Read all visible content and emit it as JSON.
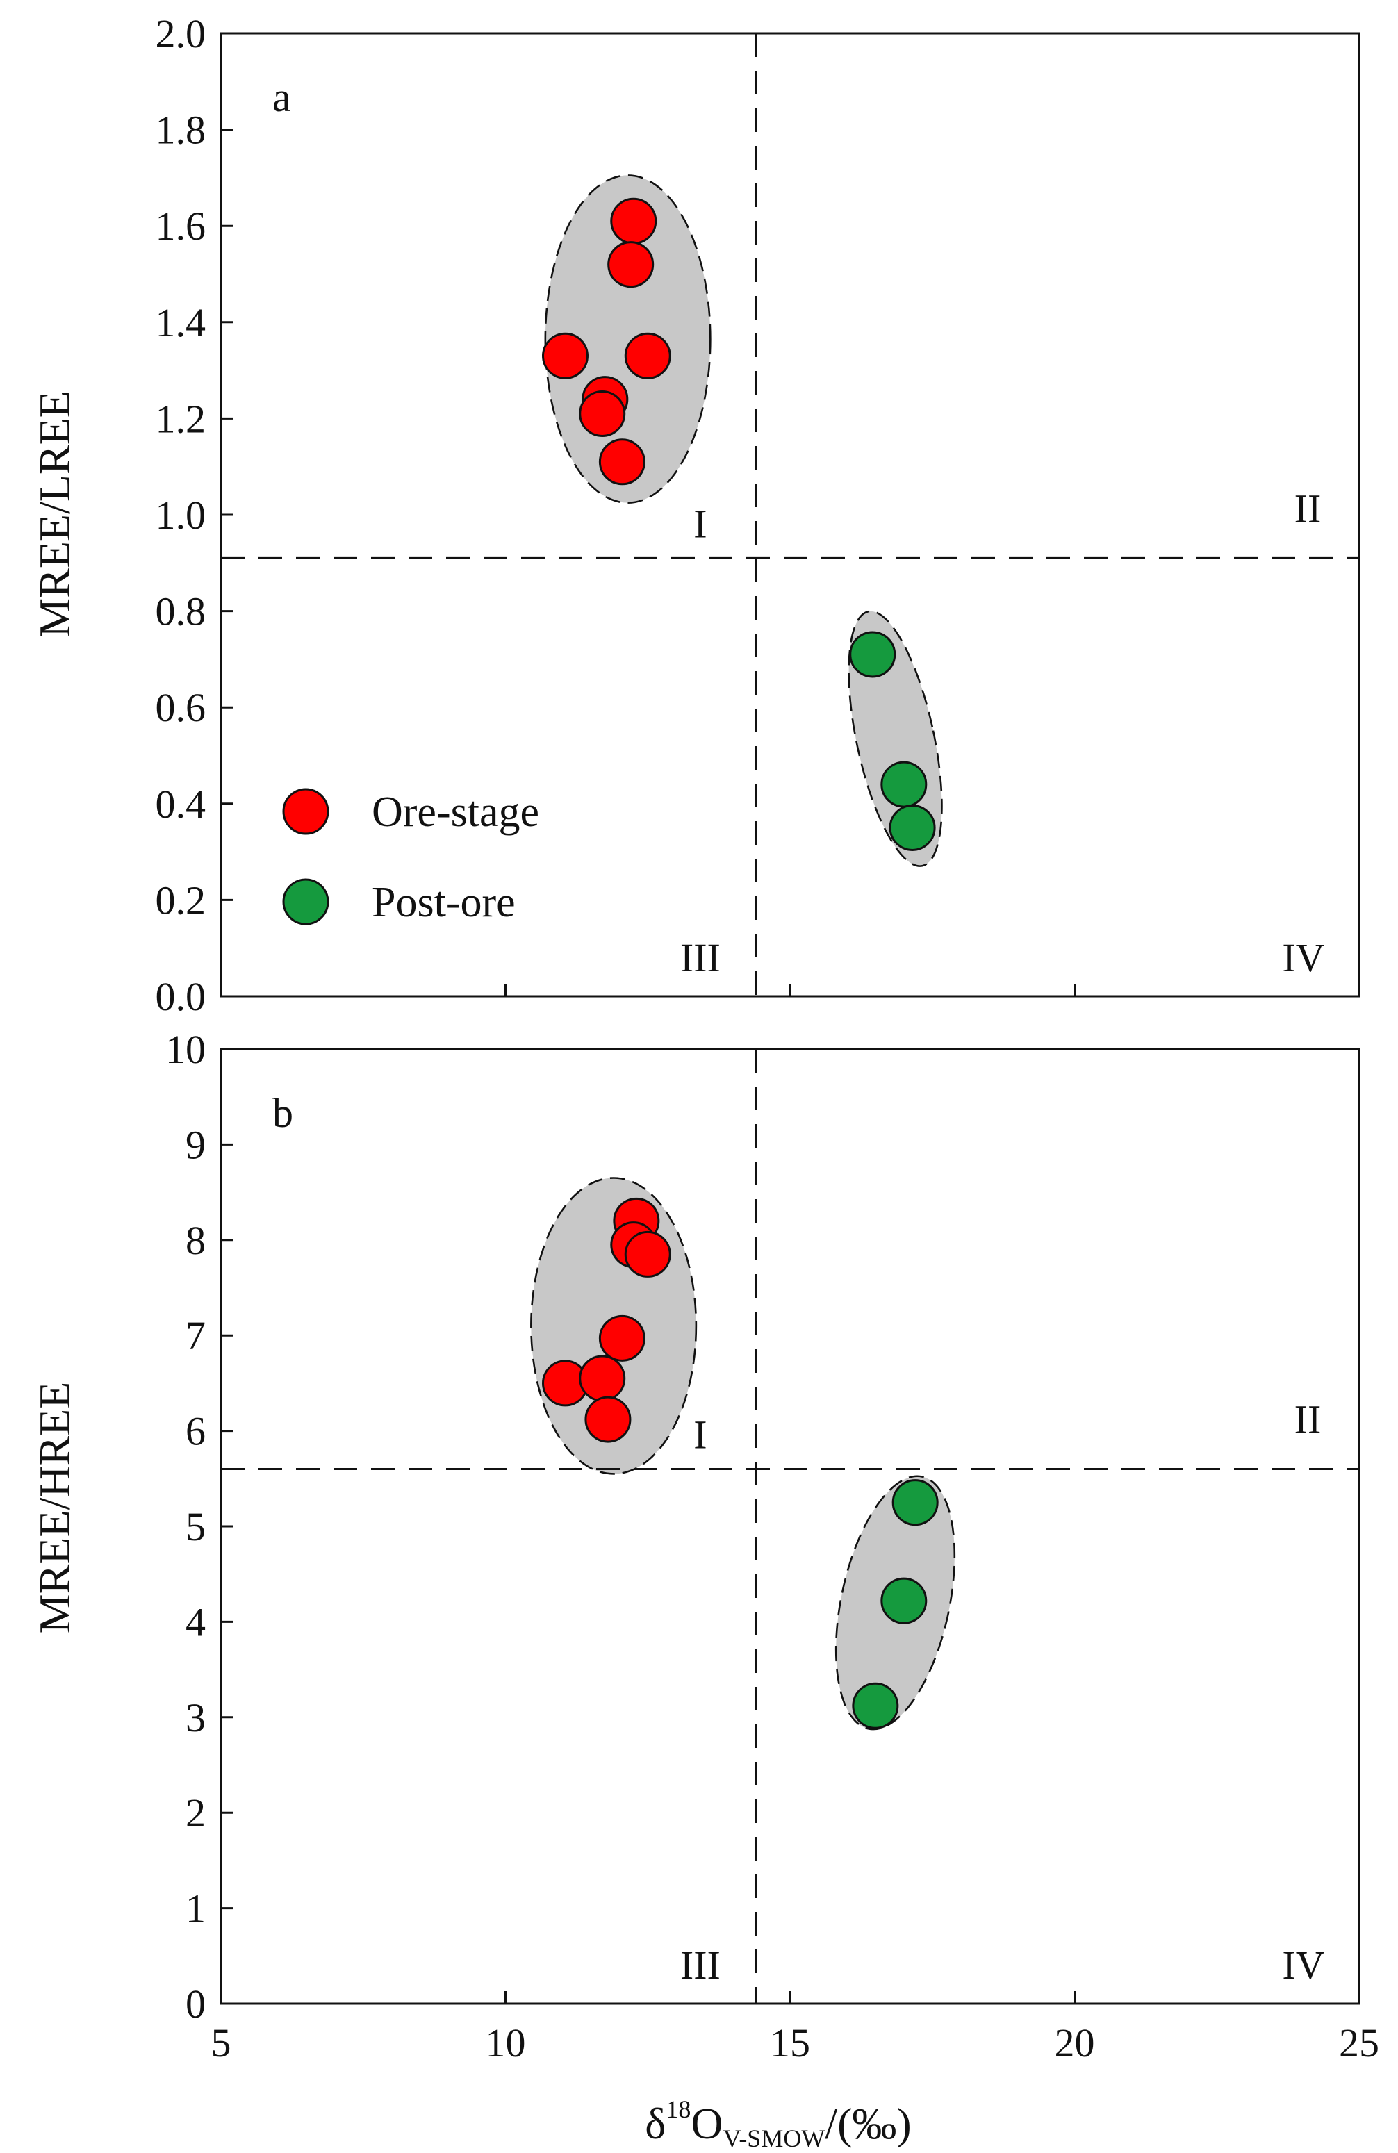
{
  "colors": {
    "ore_stage": "#ff0000",
    "post_ore": "#159a3e",
    "envelope": "#c8c8c8",
    "axis": "#111111"
  },
  "legend": [
    {
      "label": "Ore-stage",
      "color": "#ff0000"
    },
    {
      "label": "Post-ore",
      "color": "#159a3e"
    }
  ],
  "xaxis": {
    "title_main": "δ",
    "title_sup": "18",
    "title_o": "O",
    "title_sub": "V-SMOW",
    "title_unit": "/(‰)",
    "ticks": [
      "5",
      "10",
      "15",
      "20",
      "25"
    ],
    "range": [
      5,
      25
    ]
  },
  "chart_data": [
    {
      "type": "scatter",
      "panel_label": "a",
      "xlabel": "δ18O V-SMOW/(‰)",
      "ylabel": "MREE/LREE",
      "xlim": [
        5,
        25
      ],
      "ylim": [
        0,
        2.0
      ],
      "yticks": [
        "0.0",
        "0.2",
        "0.4",
        "0.6",
        "0.8",
        "1.0",
        "1.2",
        "1.4",
        "1.6",
        "1.8",
        "2.0"
      ],
      "xticks": [
        5,
        10,
        15,
        20,
        25
      ],
      "divider_x": 14.4,
      "divider_y": 0.91,
      "quadrants": {
        "I": "I",
        "II": "II",
        "III": "III",
        "IV": "IV"
      },
      "envelopes": [
        {
          "series": "Ore-stage",
          "cx": 12.15,
          "cy": 1.365,
          "rx": 1.45,
          "ry": 0.34,
          "rotation": 0
        },
        {
          "series": "Post-ore",
          "cx": 16.85,
          "cy": 0.535,
          "rx": 0.68,
          "ry": 0.27,
          "rotation": -12
        }
      ],
      "series": [
        {
          "name": "Ore-stage",
          "color": "#ff0000",
          "x": [
            12.25,
            12.2,
            11.05,
            12.5,
            11.75,
            11.7,
            12.05
          ],
          "y": [
            1.61,
            1.52,
            1.33,
            1.33,
            1.24,
            1.21,
            1.11
          ]
        },
        {
          "name": "Post-ore",
          "color": "#159a3e",
          "x": [
            16.45,
            17.0,
            17.15
          ],
          "y": [
            0.71,
            0.44,
            0.35
          ]
        }
      ]
    },
    {
      "type": "scatter",
      "panel_label": "b",
      "xlabel": "δ18O V-SMOW/(‰)",
      "ylabel": "MREE/HREE",
      "xlim": [
        5,
        25
      ],
      "ylim": [
        0,
        10
      ],
      "yticks": [
        "0",
        "1",
        "2",
        "3",
        "4",
        "5",
        "6",
        "7",
        "8",
        "9",
        "10"
      ],
      "xticks": [
        5,
        10,
        15,
        20,
        25
      ],
      "divider_x": 14.4,
      "divider_y": 5.6,
      "quadrants": {
        "I": "I",
        "II": "II",
        "III": "III",
        "IV": "IV"
      },
      "envelopes": [
        {
          "series": "Ore-stage",
          "cx": 11.9,
          "cy": 7.1,
          "rx": 1.45,
          "ry": 1.55,
          "rotation": 0
        },
        {
          "series": "Post-ore",
          "cx": 16.85,
          "cy": 4.2,
          "rx": 0.95,
          "ry": 1.35,
          "rotation": 12
        }
      ],
      "series": [
        {
          "name": "Ore-stage",
          "color": "#ff0000",
          "x": [
            12.3,
            12.25,
            12.5,
            12.05,
            11.05,
            11.7,
            11.8
          ],
          "y": [
            8.2,
            7.95,
            7.85,
            6.97,
            6.5,
            6.55,
            6.12
          ]
        },
        {
          "name": "Post-ore",
          "color": "#159a3e",
          "x": [
            17.2,
            17.0,
            16.5
          ],
          "y": [
            5.25,
            4.22,
            3.12
          ]
        }
      ]
    }
  ]
}
